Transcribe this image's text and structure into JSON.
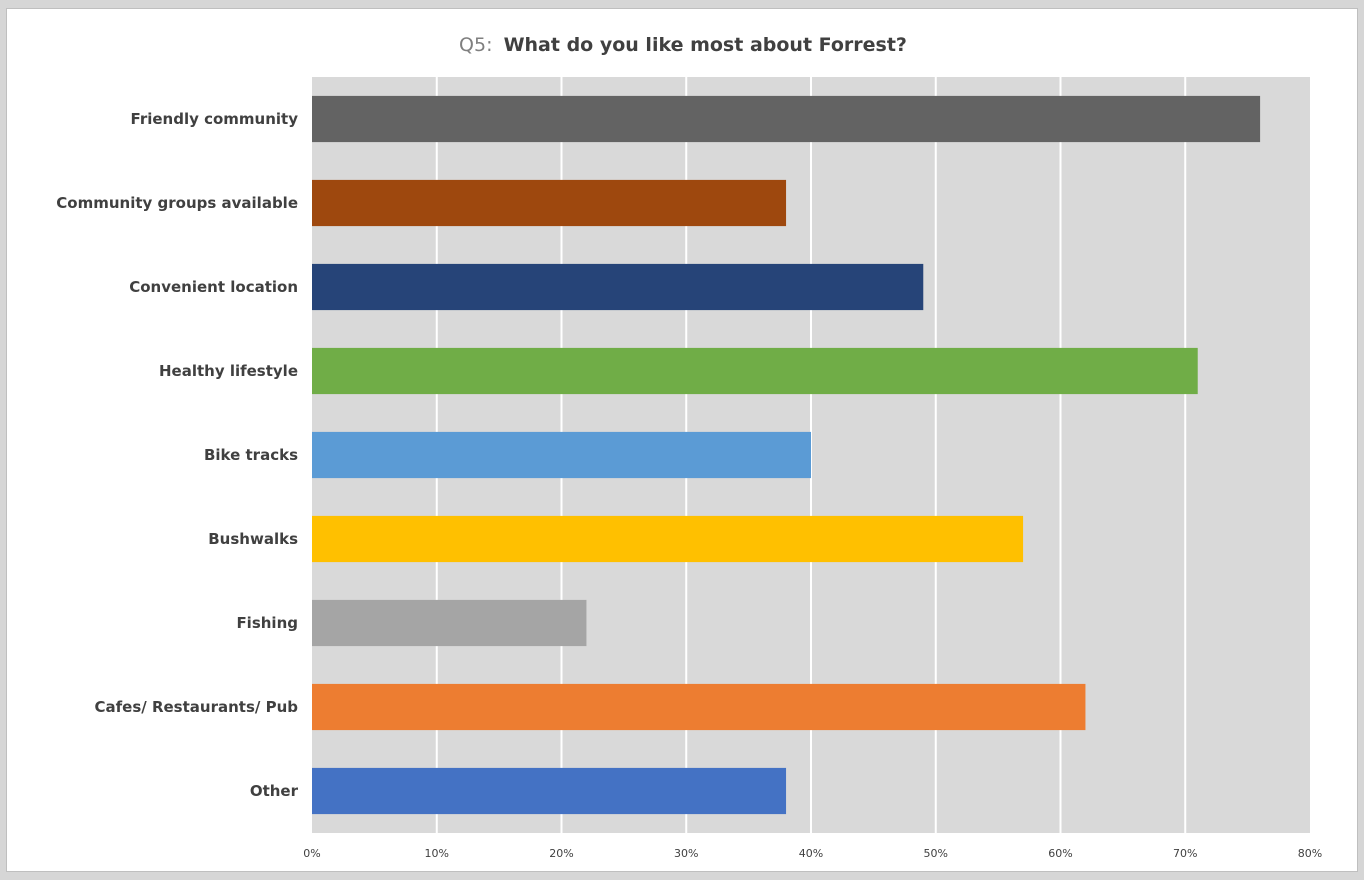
{
  "chart_data": {
    "type": "bar",
    "orientation": "horizontal",
    "title_prefix": "Q5:",
    "title": "What do you like most about Forrest?",
    "categories": [
      "Friendly community",
      "Community groups available",
      "Convenient location",
      "Healthy lifestyle",
      "Bike tracks",
      "Bushwalks",
      "Fishing",
      "Cafes/ Restaurants/ Pub",
      "Other"
    ],
    "values": [
      76,
      38,
      49,
      71,
      40,
      57,
      22,
      62,
      38
    ],
    "colors": [
      "#636363",
      "#9e480e",
      "#264478",
      "#70ad47",
      "#5b9bd5",
      "#ffc000",
      "#a5a5a5",
      "#ed7d31",
      "#4472c4"
    ],
    "xlim": [
      0,
      80
    ],
    "xticks": [
      0,
      10,
      20,
      30,
      40,
      50,
      60,
      70,
      80
    ],
    "xtick_labels": [
      "0%",
      "10%",
      "20%",
      "30%",
      "40%",
      "50%",
      "60%",
      "70%",
      "80%"
    ],
    "xlabel": "",
    "ylabel": "",
    "grid": true,
    "legend": "none",
    "plot_background": "#d9d9d9",
    "gridline_color": "#ffffff"
  }
}
